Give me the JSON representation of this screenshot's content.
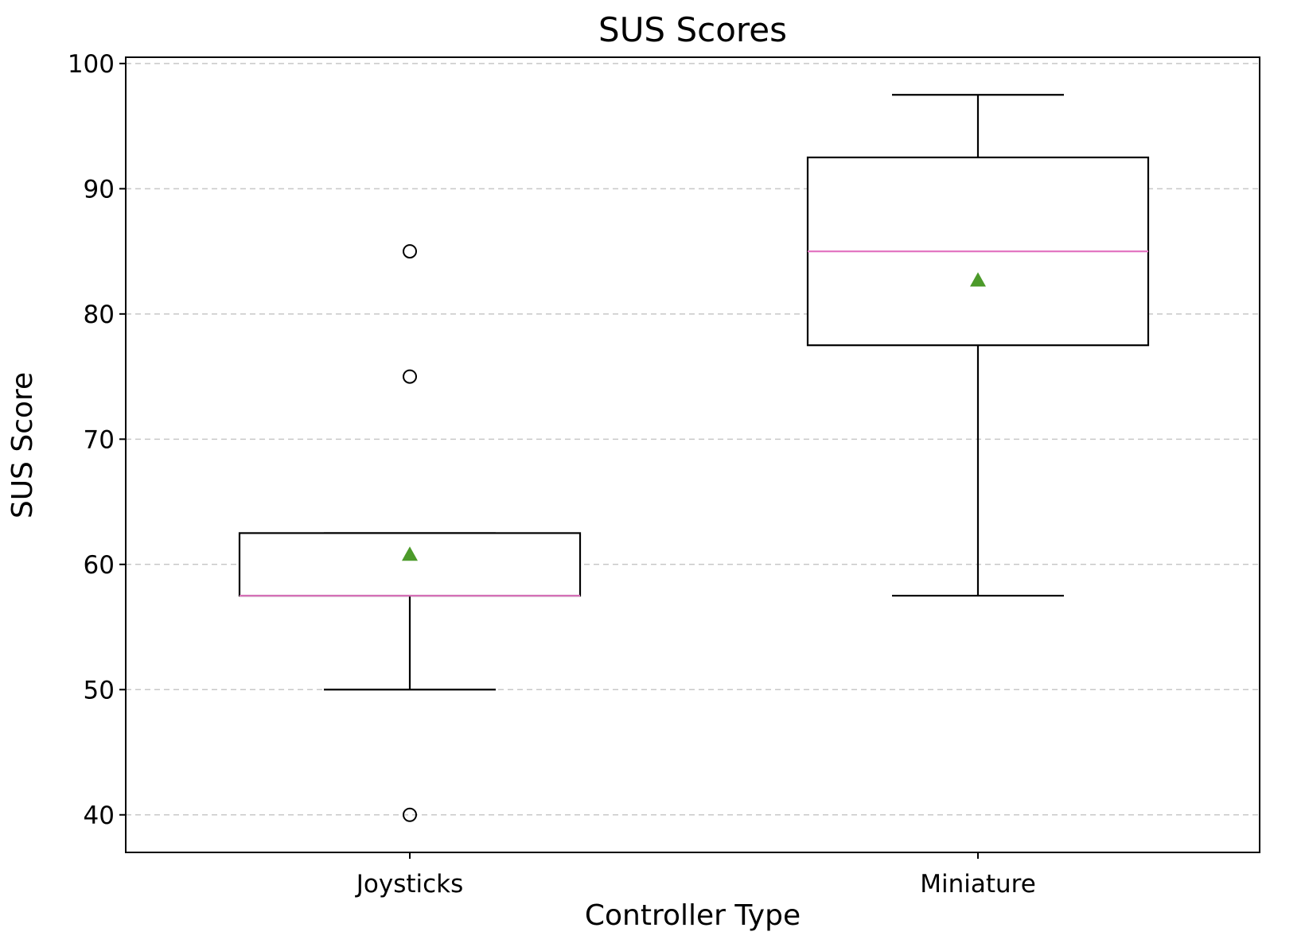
{
  "chart_data": {
    "type": "box",
    "title": "SUS Scores",
    "xlabel": "Controller Type",
    "ylabel": "SUS Score",
    "ylim": [
      37,
      100.5
    ],
    "yticks": [
      40,
      50,
      60,
      70,
      80,
      90,
      100
    ],
    "grid": "horizontal-dashed",
    "categories": [
      "Joysticks",
      "Miniature"
    ],
    "boxes": [
      {
        "category": "Joysticks",
        "whisker_low": 50,
        "q1": 57.5,
        "median": 57.5,
        "q3": 62.5,
        "whisker_high": 62.5,
        "mean": 60.8,
        "outliers": [
          85,
          75,
          40
        ]
      },
      {
        "category": "Miniature",
        "whisker_low": 57.5,
        "q1": 77.5,
        "median": 85,
        "q3": 92.5,
        "whisker_high": 97.5,
        "mean": 82.7,
        "outliers": []
      }
    ],
    "colors": {
      "box": "#000000",
      "median": "#e377c2",
      "mean": "#4c9a2a",
      "grid": "#c8c8c8"
    }
  }
}
